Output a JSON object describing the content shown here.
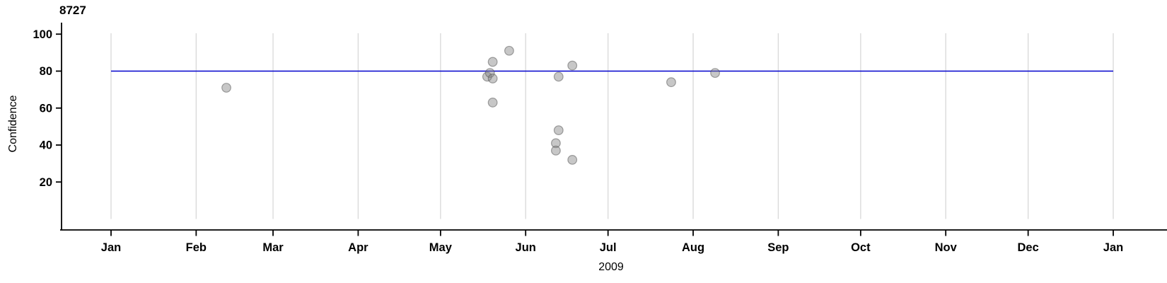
{
  "colors": {
    "background": "#ffffff",
    "reference_line": "#0000cd",
    "gridline": "#d8d8d8",
    "axis": "#000000",
    "point_fill": "rgba(130,130,130,0.45)",
    "point_stroke": "rgba(80,80,80,0.5)"
  },
  "chart_data": {
    "type": "scatter",
    "title": "8727",
    "xlabel": "2009",
    "ylabel": "Confidence",
    "legend": "none",
    "grid": "vertical-month-gridlines-only",
    "x_axis": {
      "unit": "date",
      "start": "2009-01-01",
      "end": "2010-01-01",
      "ticks": [
        {
          "label": "Jan",
          "day": 0
        },
        {
          "label": "Feb",
          "day": 31
        },
        {
          "label": "Mar",
          "day": 59
        },
        {
          "label": "Apr",
          "day": 90
        },
        {
          "label": "May",
          "day": 120
        },
        {
          "label": "Jun",
          "day": 151
        },
        {
          "label": "Jul",
          "day": 181
        },
        {
          "label": "Aug",
          "day": 212
        },
        {
          "label": "Sep",
          "day": 243
        },
        {
          "label": "Oct",
          "day": 273
        },
        {
          "label": "Nov",
          "day": 304
        },
        {
          "label": "Dec",
          "day": 334
        },
        {
          "label": "Jan",
          "day": 365
        }
      ]
    },
    "y_axis": {
      "min": 0,
      "max": 100,
      "ticks": [
        20,
        40,
        60,
        80,
        100
      ]
    },
    "reference_line": {
      "y": 80
    },
    "points": [
      {
        "date": "2009-02-12",
        "confidence": 71
      },
      {
        "date": "2009-05-18",
        "confidence": 77
      },
      {
        "date": "2009-05-19",
        "confidence": 79
      },
      {
        "date": "2009-05-20",
        "confidence": 85
      },
      {
        "date": "2009-05-20",
        "confidence": 76
      },
      {
        "date": "2009-05-20",
        "confidence": 63
      },
      {
        "date": "2009-05-26",
        "confidence": 91
      },
      {
        "date": "2009-06-12",
        "confidence": 41
      },
      {
        "date": "2009-06-12",
        "confidence": 37
      },
      {
        "date": "2009-06-13",
        "confidence": 77
      },
      {
        "date": "2009-06-13",
        "confidence": 48
      },
      {
        "date": "2009-06-18",
        "confidence": 83
      },
      {
        "date": "2009-06-18",
        "confidence": 32
      },
      {
        "date": "2009-07-24",
        "confidence": 74
      },
      {
        "date": "2009-08-09",
        "confidence": 79
      }
    ]
  }
}
